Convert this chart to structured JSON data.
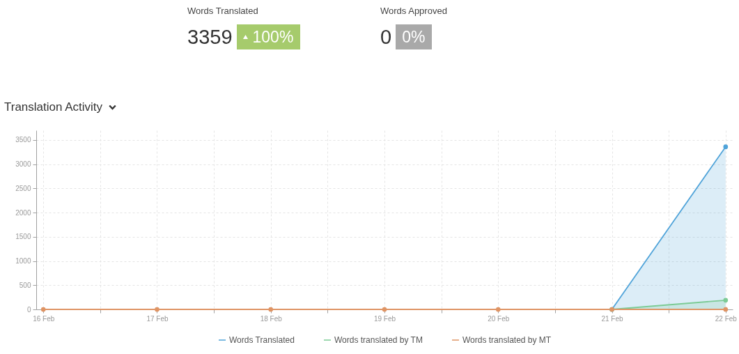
{
  "chart_data": [
    {
      "type": "other",
      "title": "Words Translated",
      "annotations": [
        "3359",
        "100%"
      ],
      "color": "#a6cb6c"
    },
    {
      "type": "other",
      "title": "Words Approved",
      "annotations": [
        "0",
        "0%"
      ],
      "color": "#a9a9a9"
    },
    {
      "type": "area",
      "title": "Translation Activity",
      "x": [
        "--02-16",
        "--02-17",
        "--02-18",
        "--02-19",
        "--02-20",
        "--02-21",
        "--02-22"
      ],
      "series": [
        {
          "name": "Words Translated",
          "color": "#4fa3d9",
          "values": [
            null,
            null,
            null,
            null,
            null,
            0,
            3359
          ]
        },
        {
          "name": "Words translated by TM",
          "color": "#7ccb95",
          "values": [
            null,
            null,
            null,
            null,
            null,
            0,
            190
          ]
        },
        {
          "name": "Words translated by MT",
          "type": "line",
          "color": "#df9464",
          "values": [
            0,
            0,
            0,
            0,
            0,
            0,
            0
          ]
        }
      ],
      "xlim": [
        "--02-15T22:30",
        "--02-22T01:30"
      ],
      "xticks": [
        {
          "value": "--02-16",
          "label": "16 Feb"
        },
        {
          "value": "--02-16T12:00",
          "label": null
        },
        {
          "value": "--02-17",
          "label": "17 Feb"
        },
        {
          "value": "--02-17T12:00",
          "label": null
        },
        {
          "value": "--02-18",
          "label": "18 Feb"
        },
        {
          "value": "--02-18T12:00",
          "label": null
        },
        {
          "value": "--02-19",
          "label": "19 Feb"
        },
        {
          "value": "--02-19T12:00",
          "label": null
        },
        {
          "value": "--02-20",
          "label": "20 Feb"
        },
        {
          "value": "--02-20T12:00",
          "label": null
        },
        {
          "value": "--02-21",
          "label": "21 Feb"
        },
        {
          "value": "--02-21T12:00",
          "label": null
        },
        {
          "value": "--02-22",
          "label": "22 Feb"
        }
      ],
      "ylim": [
        0,
        3700
      ],
      "yticks": [
        0,
        500,
        1000,
        1500,
        2000,
        2500,
        3000,
        3500
      ],
      "grid": true,
      "legend": "bottom",
      "marker": "circle"
    }
  ]
}
